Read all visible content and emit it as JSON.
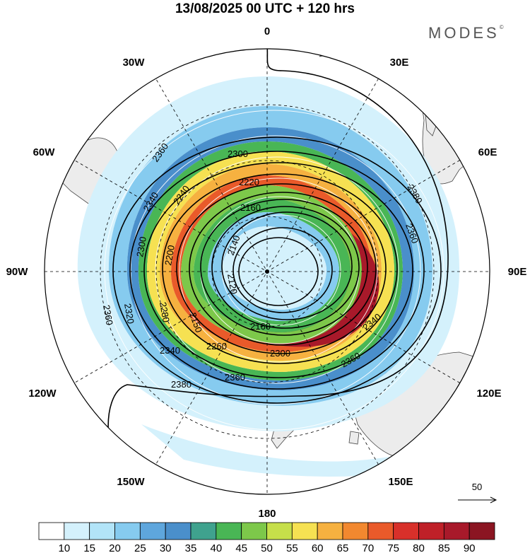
{
  "title": "13/08/2025  00 UTC  + 120 hrs",
  "logo": "MODES",
  "logo_mark": "©",
  "longitude_labels": [
    "0",
    "30E",
    "60E",
    "90E",
    "120E",
    "150E",
    "180",
    "150W",
    "120W",
    "90W",
    "60W",
    "30W"
  ],
  "contour_labels": [
    "2120",
    "2140",
    "2160",
    "2220",
    "2240",
    "2260",
    "2280",
    "2300",
    "2320",
    "2340",
    "2360",
    "2380",
    "2150",
    "2200"
  ],
  "vector_scale": {
    "value": "50"
  },
  "colorbar": {
    "ticks": [
      "10",
      "15",
      "20",
      "25",
      "30",
      "35",
      "40",
      "45",
      "50",
      "55",
      "60",
      "65",
      "70",
      "75",
      "80",
      "85",
      "90"
    ],
    "colors": [
      "#ffffff",
      "#d4f1fc",
      "#b2e4f8",
      "#86cbef",
      "#5ea6dd",
      "#4a8fcb",
      "#3fa28e",
      "#49b655",
      "#7dc84a",
      "#c6df4a",
      "#f6e152",
      "#f6b140",
      "#f2882f",
      "#e95a2a",
      "#d8302a",
      "#bf2028",
      "#a8192a",
      "#8b1522"
    ]
  }
}
